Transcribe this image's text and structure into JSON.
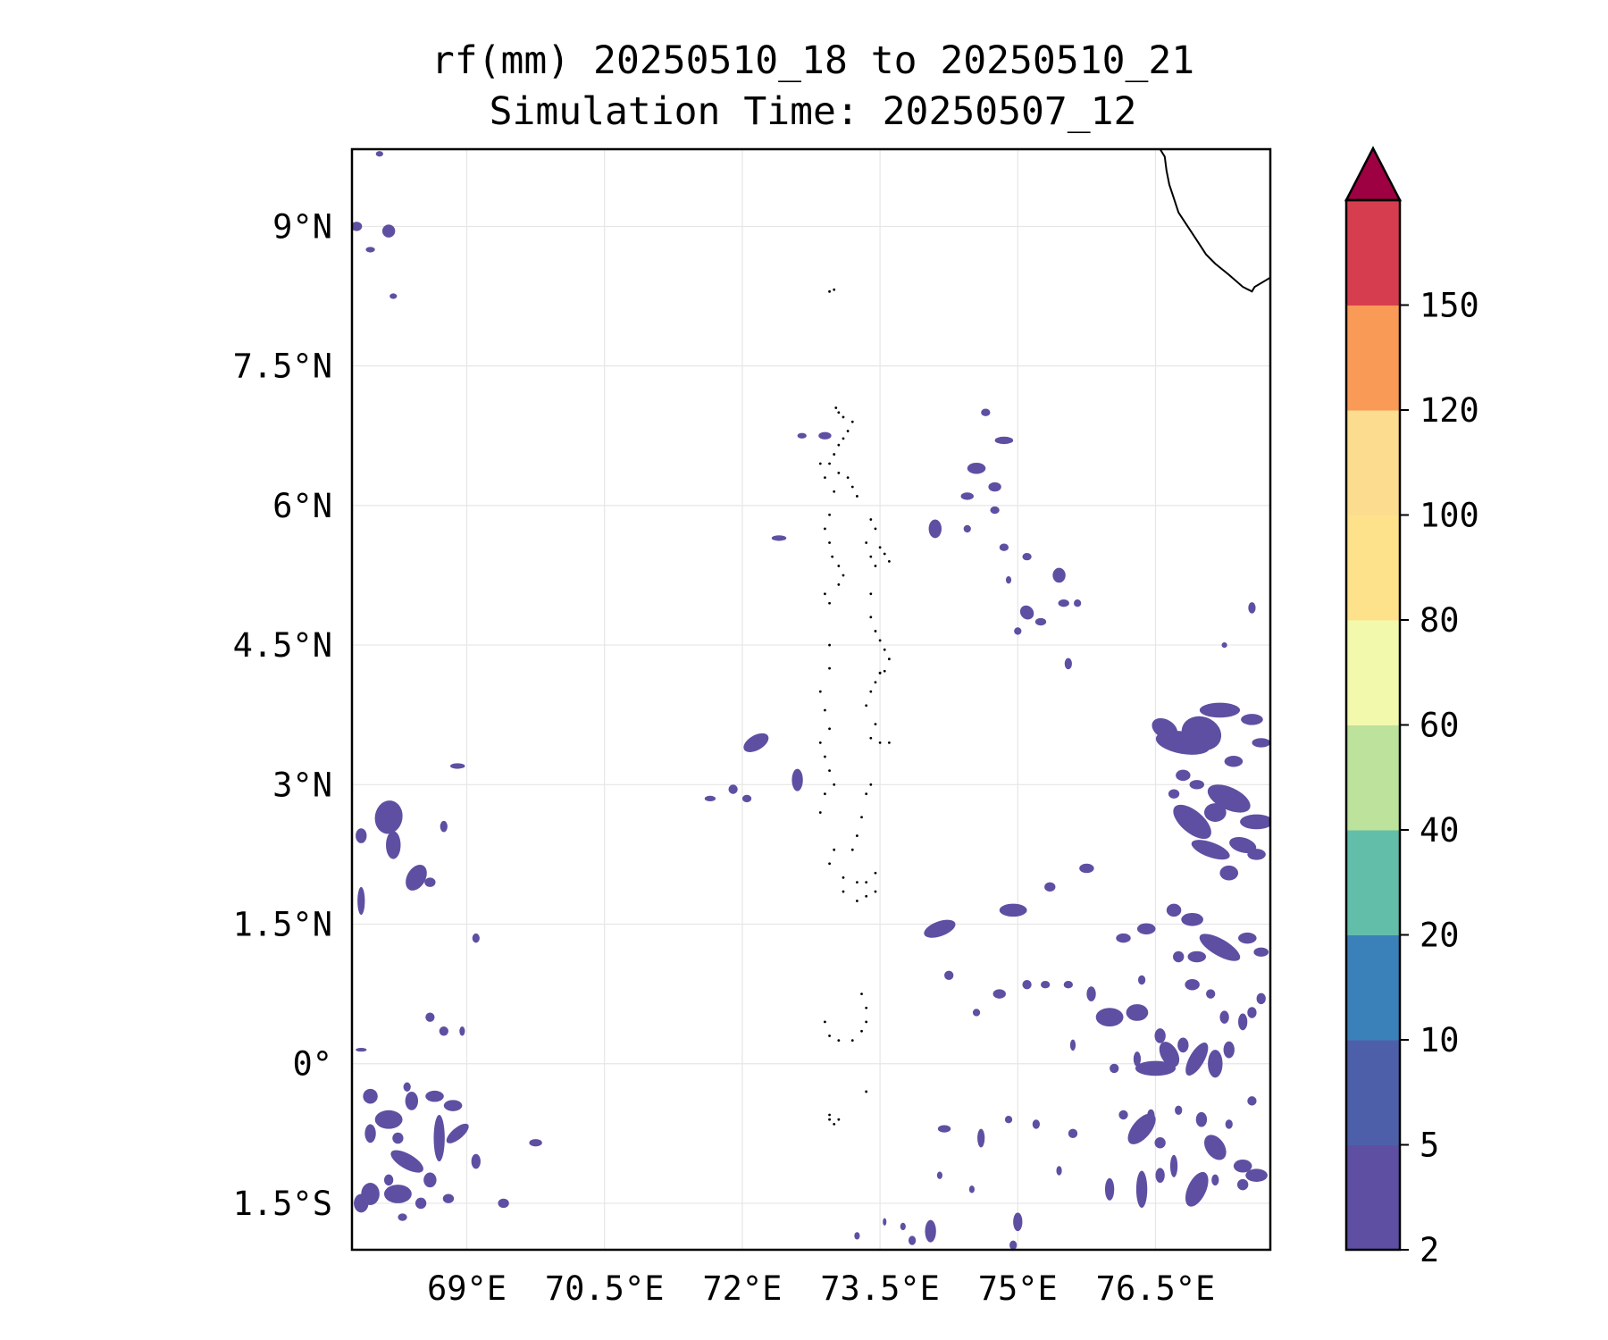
{
  "map": {
    "title_line1": "rf(mm) 20250510_18 to 20250510_21",
    "title_line2": "Simulation Time: 20250507_12",
    "extent": {
      "lon": [
        67.75,
        77.75
      ],
      "lat": [
        -2.0,
        9.83
      ]
    },
    "lon_ticks": [
      {
        "value": 69.0,
        "label": "69°E"
      },
      {
        "value": 70.5,
        "label": "70.5°E"
      },
      {
        "value": 72.0,
        "label": "72°E"
      },
      {
        "value": 73.5,
        "label": "73.5°E"
      },
      {
        "value": 75.0,
        "label": "75°E"
      },
      {
        "value": 76.5,
        "label": "76.5°E"
      }
    ],
    "lat_ticks": [
      {
        "value": 9.0,
        "label": "9°N"
      },
      {
        "value": 7.5,
        "label": "7.5°N"
      },
      {
        "value": 6.0,
        "label": "6°N"
      },
      {
        "value": 4.5,
        "label": "4.5°N"
      },
      {
        "value": 3.0,
        "label": "3°N"
      },
      {
        "value": 1.5,
        "label": "1.5°N"
      },
      {
        "value": 0.0,
        "label": "0°"
      },
      {
        "value": -1.5,
        "label": "1.5°S"
      }
    ],
    "gridlines": true,
    "rain_color": "#5e4fa2",
    "coast_color": "#000000",
    "rain_cells": [
      [
        77.0,
        3.55,
        0.22,
        0.18,
        20
      ],
      [
        76.8,
        3.45,
        0.3,
        0.12,
        10
      ],
      [
        77.2,
        3.8,
        0.22,
        0.08,
        0
      ],
      [
        76.6,
        3.6,
        0.15,
        0.1,
        30
      ],
      [
        77.55,
        3.7,
        0.12,
        0.06,
        0
      ],
      [
        77.65,
        3.45,
        0.1,
        0.05,
        0
      ],
      [
        77.3,
        2.85,
        0.25,
        0.12,
        25
      ],
      [
        77.6,
        2.6,
        0.18,
        0.08,
        0
      ],
      [
        77.15,
        2.7,
        0.12,
        0.1,
        0
      ],
      [
        76.9,
        2.6,
        0.25,
        0.12,
        40
      ],
      [
        77.1,
        2.3,
        0.22,
        0.08,
        20
      ],
      [
        77.45,
        2.35,
        0.15,
        0.08,
        15
      ],
      [
        77.3,
        2.05,
        0.1,
        0.08,
        0
      ],
      [
        77.6,
        2.25,
        0.1,
        0.06,
        0
      ],
      [
        76.8,
        3.1,
        0.08,
        0.06,
        0
      ],
      [
        76.7,
        2.9,
        0.06,
        0.05,
        0
      ],
      [
        76.95,
        3.0,
        0.08,
        0.05,
        0
      ],
      [
        77.35,
        3.25,
        0.1,
        0.06,
        0
      ],
      [
        76.7,
        1.65,
        0.08,
        0.07,
        0
      ],
      [
        76.9,
        1.55,
        0.12,
        0.07,
        0
      ],
      [
        77.2,
        1.25,
        0.25,
        0.09,
        30
      ],
      [
        77.5,
        1.35,
        0.1,
        0.06,
        0
      ],
      [
        76.95,
        1.15,
        0.1,
        0.06,
        0
      ],
      [
        76.75,
        1.15,
        0.06,
        0.06,
        0
      ],
      [
        77.65,
        1.2,
        0.05,
        0.08,
        90
      ],
      [
        76.4,
        1.45,
        0.1,
        0.06,
        0
      ],
      [
        76.15,
        1.35,
        0.08,
        0.05,
        0
      ],
      [
        75.75,
        2.1,
        0.08,
        0.05,
        0
      ],
      [
        75.35,
        1.9,
        0.06,
        0.05,
        0
      ],
      [
        74.95,
        1.65,
        0.15,
        0.07,
        0
      ],
      [
        74.15,
        1.45,
        0.18,
        0.08,
        -20
      ],
      [
        74.8,
        0.75,
        0.07,
        0.05,
        0
      ],
      [
        75.1,
        0.85,
        0.05,
        0.05,
        0
      ],
      [
        75.3,
        0.85,
        0.05,
        0.04,
        0
      ],
      [
        75.55,
        0.85,
        0.05,
        0.04,
        0
      ],
      [
        74.25,
        0.95,
        0.05,
        0.05,
        0
      ],
      [
        74.55,
        0.55,
        0.04,
        0.04,
        0
      ],
      [
        75.8,
        0.75,
        0.05,
        0.08,
        0
      ],
      [
        76.0,
        0.5,
        0.15,
        0.1,
        0
      ],
      [
        76.3,
        0.55,
        0.12,
        0.09,
        0
      ],
      [
        76.05,
        -0.05,
        0.05,
        0.05,
        0
      ],
      [
        76.3,
        0.05,
        0.04,
        0.08,
        0
      ],
      [
        76.55,
        0.3,
        0.06,
        0.08,
        0
      ],
      [
        76.8,
        0.2,
        0.06,
        0.08,
        0
      ],
      [
        76.5,
        -0.05,
        0.22,
        0.08,
        0
      ],
      [
        76.65,
        0.1,
        0.15,
        0.09,
        60
      ],
      [
        76.95,
        0.05,
        0.08,
        0.2,
        30
      ],
      [
        77.15,
        -0.0,
        0.08,
        0.15,
        0
      ],
      [
        77.3,
        0.15,
        0.06,
        0.09,
        0
      ],
      [
        77.45,
        0.45,
        0.05,
        0.09,
        0
      ],
      [
        77.25,
        0.5,
        0.05,
        0.07,
        0
      ],
      [
        77.55,
        0.55,
        0.05,
        0.06,
        0
      ],
      [
        77.65,
        0.7,
        0.05,
        0.06,
        0
      ],
      [
        76.9,
        0.85,
        0.08,
        0.06,
        0
      ],
      [
        77.1,
        0.75,
        0.05,
        0.05,
        0
      ],
      [
        76.35,
        0.9,
        0.04,
        0.05,
        0
      ],
      [
        75.6,
        0.2,
        0.03,
        0.06,
        0
      ],
      [
        76.15,
        -0.55,
        0.05,
        0.05,
        0
      ],
      [
        76.45,
        -0.55,
        0.04,
        0.06,
        0
      ],
      [
        76.35,
        -0.7,
        0.1,
        0.2,
        40
      ],
      [
        76.55,
        -0.85,
        0.06,
        0.06,
        0
      ],
      [
        76.75,
        -0.5,
        0.04,
        0.05,
        0
      ],
      [
        77.0,
        -0.6,
        0.06,
        0.08,
        0
      ],
      [
        77.15,
        -0.9,
        0.1,
        0.15,
        -35
      ],
      [
        77.3,
        -0.65,
        0.04,
        0.05,
        0
      ],
      [
        77.55,
        -0.4,
        0.05,
        0.05,
        0
      ],
      [
        77.45,
        -1.1,
        0.1,
        0.07,
        0
      ],
      [
        77.6,
        -1.2,
        0.12,
        0.07,
        0
      ],
      [
        77.45,
        -1.3,
        0.06,
        0.06,
        0
      ],
      [
        77.15,
        -1.25,
        0.04,
        0.06,
        0
      ],
      [
        76.95,
        -1.35,
        0.1,
        0.2,
        25
      ],
      [
        76.7,
        -1.1,
        0.04,
        0.12,
        0
      ],
      [
        76.55,
        -1.2,
        0.05,
        0.08,
        0
      ],
      [
        76.35,
        -1.35,
        0.06,
        0.2,
        0
      ],
      [
        76.0,
        -1.35,
        0.05,
        0.12,
        0
      ],
      [
        75.45,
        -1.15,
        0.03,
        0.05,
        0
      ],
      [
        75.2,
        -0.65,
        0.04,
        0.05,
        0
      ],
      [
        75.6,
        -0.75,
        0.05,
        0.05,
        0
      ],
      [
        74.9,
        -0.6,
        0.04,
        0.04,
        0
      ],
      [
        74.6,
        -0.8,
        0.04,
        0.1,
        0
      ],
      [
        74.2,
        -0.7,
        0.07,
        0.04,
        0
      ],
      [
        75.0,
        -1.7,
        0.05,
        0.1,
        0
      ],
      [
        74.95,
        -1.95,
        0.04,
        0.05,
        0
      ],
      [
        74.05,
        -1.8,
        0.06,
        0.12,
        0
      ],
      [
        73.85,
        -1.9,
        0.04,
        0.05,
        0
      ],
      [
        73.75,
        -1.75,
        0.03,
        0.04,
        0
      ],
      [
        73.55,
        -1.7,
        0.02,
        0.04,
        0
      ],
      [
        73.25,
        -1.85,
        0.03,
        0.04,
        0
      ],
      [
        74.5,
        -1.35,
        0.03,
        0.04,
        0
      ],
      [
        74.15,
        -1.2,
        0.03,
        0.04,
        0
      ],
      [
        74.55,
        6.4,
        0.1,
        0.06,
        0
      ],
      [
        74.85,
        6.7,
        0.1,
        0.04,
        0
      ],
      [
        74.45,
        6.1,
        0.07,
        0.04,
        0
      ],
      [
        74.75,
        6.2,
        0.07,
        0.05,
        0
      ],
      [
        74.65,
        7.0,
        0.05,
        0.04,
        0
      ],
      [
        74.1,
        5.75,
        0.07,
        0.1,
        0
      ],
      [
        74.45,
        5.75,
        0.04,
        0.04,
        0
      ],
      [
        74.75,
        5.95,
        0.05,
        0.04,
        0
      ],
      [
        74.85,
        5.55,
        0.05,
        0.04,
        0
      ],
      [
        75.1,
        5.45,
        0.05,
        0.04,
        0
      ],
      [
        75.45,
        5.25,
        0.07,
        0.08,
        0
      ],
      [
        75.5,
        4.95,
        0.06,
        0.04,
        0
      ],
      [
        75.1,
        4.85,
        0.07,
        0.08,
        -40
      ],
      [
        75.25,
        4.75,
        0.06,
        0.04,
        0
      ],
      [
        75.65,
        4.95,
        0.04,
        0.04,
        0
      ],
      [
        74.9,
        5.2,
        0.03,
        0.04,
        0
      ],
      [
        75.55,
        4.3,
        0.04,
        0.06,
        0
      ],
      [
        75.0,
        4.65,
        0.04,
        0.04,
        0
      ],
      [
        77.55,
        4.9,
        0.04,
        0.06,
        0
      ],
      [
        77.25,
        4.5,
        0.03,
        0.03,
        0
      ],
      [
        72.15,
        3.45,
        0.15,
        0.08,
        -30
      ],
      [
        71.9,
        2.95,
        0.05,
        0.05,
        0
      ],
      [
        72.05,
        2.85,
        0.05,
        0.04,
        0
      ],
      [
        71.65,
        2.85,
        0.06,
        0.03,
        0
      ],
      [
        72.6,
        3.05,
        0.06,
        0.12,
        0
      ],
      [
        72.4,
        5.65,
        0.08,
        0.03,
        0
      ],
      [
        72.9,
        6.75,
        0.07,
        0.04,
        0
      ],
      [
        72.65,
        6.75,
        0.05,
        0.03,
        0
      ],
      [
        68.15,
        2.65,
        0.15,
        0.18,
        10
      ],
      [
        68.2,
        2.35,
        0.08,
        0.15,
        0
      ],
      [
        68.45,
        2.0,
        0.1,
        0.15,
        30
      ],
      [
        68.6,
        1.95,
        0.06,
        0.05,
        0
      ],
      [
        67.85,
        2.45,
        0.06,
        0.08,
        0
      ],
      [
        67.85,
        1.75,
        0.04,
        0.15,
        0
      ],
      [
        68.75,
        2.55,
        0.04,
        0.06,
        0
      ],
      [
        68.9,
        3.2,
        0.08,
        0.03,
        0
      ],
      [
        69.1,
        1.35,
        0.04,
        0.05,
        0
      ],
      [
        67.8,
        9.0,
        0.06,
        0.05,
        0
      ],
      [
        68.15,
        8.95,
        0.07,
        0.07,
        0
      ],
      [
        67.95,
        8.75,
        0.05,
        0.03,
        0
      ],
      [
        68.2,
        8.25,
        0.04,
        0.03,
        0
      ],
      [
        68.05,
        9.78,
        0.04,
        0.03,
        0
      ],
      [
        68.15,
        -0.6,
        0.15,
        0.1,
        0
      ],
      [
        68.4,
        -0.4,
        0.07,
        0.1,
        0
      ],
      [
        68.65,
        -0.35,
        0.1,
        0.06,
        0
      ],
      [
        68.85,
        -0.45,
        0.1,
        0.06,
        0
      ],
      [
        67.95,
        -0.35,
        0.08,
        0.08,
        0
      ],
      [
        68.7,
        -0.8,
        0.06,
        0.25,
        0
      ],
      [
        68.9,
        -0.75,
        0.15,
        0.06,
        -40
      ],
      [
        68.35,
        -1.05,
        0.2,
        0.08,
        30
      ],
      [
        68.6,
        -1.25,
        0.07,
        0.08,
        0
      ],
      [
        68.15,
        -1.25,
        0.05,
        0.06,
        0
      ],
      [
        68.25,
        -0.8,
        0.06,
        0.06,
        0
      ],
      [
        67.95,
        -0.75,
        0.06,
        0.1,
        0
      ],
      [
        67.95,
        -1.4,
        0.1,
        0.12,
        0
      ],
      [
        68.25,
        -1.4,
        0.15,
        0.1,
        0
      ],
      [
        67.85,
        -1.5,
        0.08,
        0.1,
        0
      ],
      [
        68.5,
        -1.5,
        0.06,
        0.06,
        0
      ],
      [
        68.8,
        -1.45,
        0.06,
        0.05,
        0
      ],
      [
        69.1,
        -1.05,
        0.05,
        0.08,
        0
      ],
      [
        69.4,
        -1.5,
        0.06,
        0.05,
        0
      ],
      [
        69.75,
        -0.85,
        0.07,
        0.04,
        0
      ],
      [
        68.3,
        -1.65,
        0.05,
        0.04,
        0
      ],
      [
        68.6,
        0.5,
        0.05,
        0.05,
        0
      ],
      [
        68.75,
        0.35,
        0.05,
        0.05,
        0
      ],
      [
        68.95,
        0.35,
        0.03,
        0.05,
        0
      ],
      [
        67.85,
        0.15,
        0.06,
        0.02,
        0
      ],
      [
        68.35,
        -0.25,
        0.04,
        0.05,
        0
      ]
    ],
    "islands": [
      [
        73.02,
        7.05
      ],
      [
        73.05,
        7.0
      ],
      [
        73.1,
        6.95
      ],
      [
        73.2,
        6.9
      ],
      [
        73.15,
        6.8
      ],
      [
        73.1,
        6.72
      ],
      [
        73.05,
        6.65
      ],
      [
        73.0,
        6.55
      ],
      [
        72.95,
        6.45
      ],
      [
        73.05,
        6.35
      ],
      [
        73.15,
        6.3
      ],
      [
        73.2,
        6.2
      ],
      [
        73.25,
        6.1
      ],
      [
        73.0,
        6.15
      ],
      [
        72.9,
        6.3
      ],
      [
        72.85,
        6.45
      ],
      [
        72.95,
        5.9
      ],
      [
        72.9,
        5.75
      ],
      [
        72.95,
        5.6
      ],
      [
        72.98,
        5.45
      ],
      [
        73.05,
        5.35
      ],
      [
        73.1,
        5.25
      ],
      [
        73.05,
        5.15
      ],
      [
        72.9,
        5.05
      ],
      [
        72.95,
        4.95
      ],
      [
        73.4,
        5.85
      ],
      [
        73.45,
        5.75
      ],
      [
        73.35,
        5.6
      ],
      [
        73.5,
        5.55
      ],
      [
        73.55,
        5.48
      ],
      [
        73.6,
        5.4
      ],
      [
        73.45,
        5.35
      ],
      [
        73.4,
        5.45
      ],
      [
        73.4,
        5.05
      ],
      [
        73.4,
        4.8
      ],
      [
        73.45,
        4.65
      ],
      [
        73.5,
        4.55
      ],
      [
        73.55,
        4.45
      ],
      [
        73.6,
        4.35
      ],
      [
        73.5,
        4.2
      ],
      [
        73.45,
        4.1
      ],
      [
        73.4,
        4.0
      ],
      [
        73.35,
        3.85
      ],
      [
        73.45,
        3.65
      ],
      [
        73.4,
        3.5
      ],
      [
        73.5,
        3.45
      ],
      [
        73.6,
        3.45
      ],
      [
        72.95,
        4.5
      ],
      [
        72.95,
        4.25
      ],
      [
        72.85,
        4.0
      ],
      [
        72.9,
        3.8
      ],
      [
        72.95,
        3.6
      ],
      [
        72.85,
        3.45
      ],
      [
        72.9,
        3.3
      ],
      [
        72.95,
        3.15
      ],
      [
        73.0,
        3.0
      ],
      [
        72.9,
        2.9
      ],
      [
        72.85,
        2.7
      ],
      [
        73.35,
        2.9
      ],
      [
        73.4,
        3.0
      ],
      [
        73.3,
        2.65
      ],
      [
        73.25,
        2.45
      ],
      [
        73.2,
        2.3
      ],
      [
        73.0,
        2.3
      ],
      [
        72.95,
        2.15
      ],
      [
        73.1,
        2.0
      ],
      [
        73.25,
        1.95
      ],
      [
        73.35,
        1.95
      ],
      [
        73.45,
        2.05
      ],
      [
        73.45,
        1.85
      ],
      [
        73.35,
        1.8
      ],
      [
        73.25,
        1.75
      ],
      [
        73.1,
        1.85
      ],
      [
        73.3,
        0.75
      ],
      [
        73.35,
        0.45
      ],
      [
        73.3,
        0.35
      ],
      [
        73.2,
        0.25
      ],
      [
        73.05,
        0.25
      ],
      [
        72.95,
        0.3
      ],
      [
        72.9,
        0.45
      ],
      [
        73.35,
        0.6
      ],
      [
        73.35,
        -0.3
      ],
      [
        73.05,
        -0.6
      ],
      [
        73.0,
        -0.65
      ],
      [
        72.95,
        -0.6
      ],
      [
        72.95,
        -0.55
      ],
      [
        72.95,
        8.3
      ],
      [
        73.0,
        8.32
      ],
      [
        73.5,
        4.2
      ],
      [
        73.55,
        4.22
      ]
    ],
    "coastline": [
      [
        76.55,
        9.83
      ],
      [
        76.6,
        9.75
      ],
      [
        76.62,
        9.6
      ],
      [
        76.65,
        9.45
      ],
      [
        76.7,
        9.3
      ],
      [
        76.75,
        9.15
      ],
      [
        76.85,
        9.0
      ],
      [
        76.95,
        8.85
      ],
      [
        77.05,
        8.7
      ],
      [
        77.15,
        8.6
      ],
      [
        77.3,
        8.48
      ],
      [
        77.45,
        8.35
      ],
      [
        77.55,
        8.3
      ],
      [
        77.58,
        8.35
      ],
      [
        77.7,
        8.42
      ],
      [
        77.75,
        8.45
      ]
    ]
  },
  "colorbar": {
    "tick_labels": [
      "2",
      "5",
      "10",
      "20",
      "40",
      "60",
      "80",
      "100",
      "120",
      "150"
    ],
    "colors": [
      "#5e4fa2",
      "#4e5faa",
      "#3a80b9",
      "#63bea9",
      "#bce29c",
      "#f3f9ac",
      "#fde18b",
      "#fcdc8e",
      "#f99a57",
      "#d63e4f"
    ],
    "extend_color": "#9e0142",
    "extend": "max"
  }
}
